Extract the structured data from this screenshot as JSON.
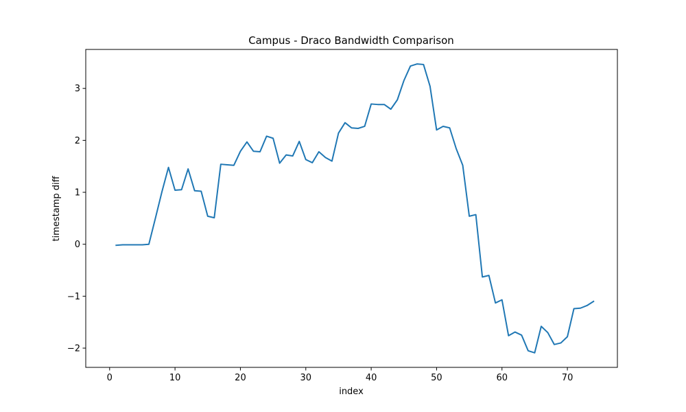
{
  "chart_data": {
    "type": "line",
    "title": "Campus - Draco Bandwidth Comparison",
    "xlabel": "index",
    "ylabel": "timestamp diff",
    "xlim": [
      -3.65,
      77.65
    ],
    "ylim": [
      -2.37,
      3.75
    ],
    "xticks": [
      0,
      10,
      20,
      30,
      40,
      50,
      60,
      70
    ],
    "yticks": [
      -2,
      -1,
      0,
      1,
      2,
      3
    ],
    "xtick_labels": [
      "0",
      "10",
      "20",
      "30",
      "40",
      "50",
      "60",
      "70"
    ],
    "ytick_labels": [
      "−2",
      "−1",
      "0",
      "1",
      "2",
      "3"
    ],
    "grid": false,
    "series": [
      {
        "color": "#1f77b4",
        "x": [
          1,
          2,
          3,
          4,
          5,
          6,
          7,
          8,
          9,
          10,
          11,
          12,
          13,
          14,
          15,
          16,
          17,
          18,
          19,
          20,
          21,
          22,
          23,
          24,
          25,
          26,
          27,
          28,
          29,
          30,
          31,
          32,
          33,
          34,
          35,
          36,
          37,
          38,
          39,
          40,
          41,
          42,
          43,
          44,
          45,
          46,
          47,
          48,
          49,
          50,
          51,
          52,
          53,
          54,
          55,
          56,
          57,
          58,
          59,
          60,
          61,
          62,
          63,
          64,
          65,
          66,
          67,
          68,
          69,
          70,
          71,
          72,
          73,
          74
        ],
        "y": [
          -0.02,
          -0.01,
          -0.01,
          -0.01,
          -0.01,
          0.0,
          0.5,
          1.01,
          1.48,
          1.04,
          1.05,
          1.45,
          1.03,
          1.02,
          0.54,
          0.51,
          1.54,
          1.53,
          1.52,
          1.79,
          1.97,
          1.79,
          1.78,
          2.08,
          2.04,
          1.56,
          1.72,
          1.7,
          1.98,
          1.63,
          1.57,
          1.78,
          1.67,
          1.6,
          2.14,
          2.34,
          2.24,
          2.23,
          2.27,
          2.7,
          2.69,
          2.69,
          2.6,
          2.78,
          3.15,
          3.43,
          3.47,
          3.46,
          3.04,
          2.2,
          2.27,
          2.24,
          1.84,
          1.52,
          0.54,
          0.57,
          -0.63,
          -0.6,
          -1.13,
          -1.07,
          -1.76,
          -1.69,
          -1.75,
          -2.05,
          -2.09,
          -1.58,
          -1.7,
          -1.93,
          -1.9,
          -1.78,
          -1.24,
          -1.23,
          -1.18,
          -1.1
        ]
      }
    ]
  }
}
